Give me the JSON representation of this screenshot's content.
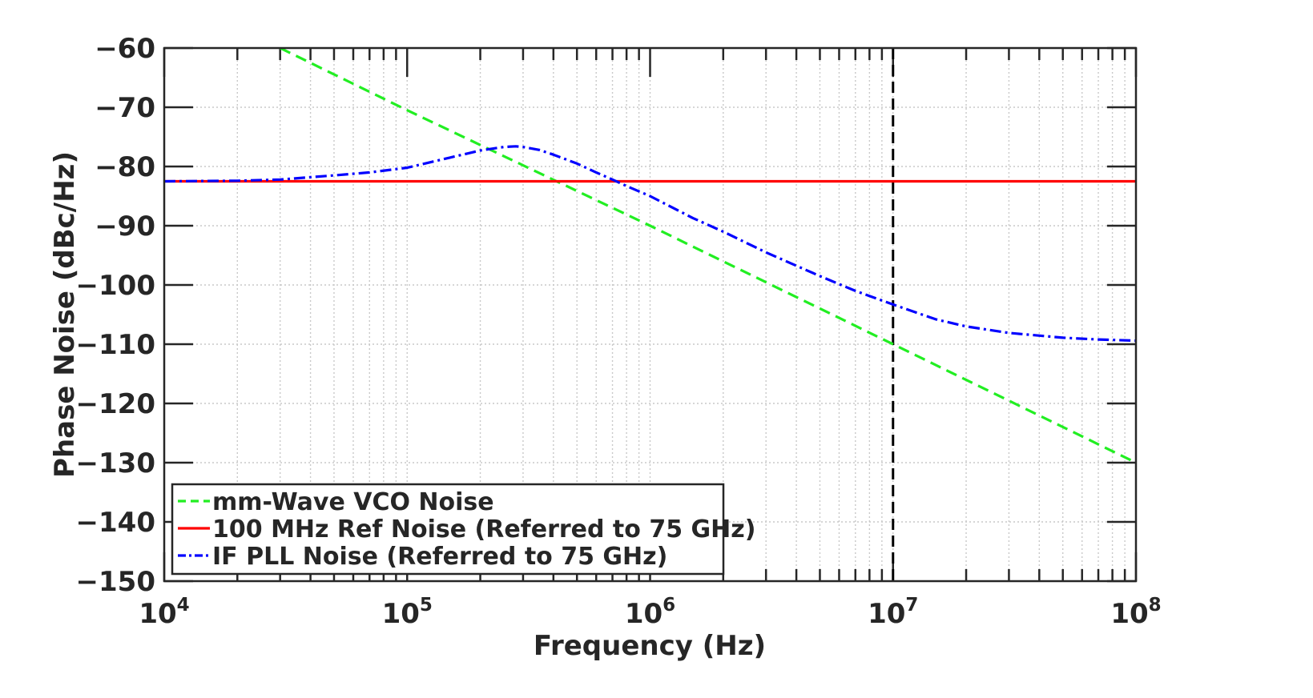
{
  "chart_data": {
    "type": "line",
    "xlabel": "Frequency (Hz)",
    "ylabel": "Phase Noise (dBc/Hz)",
    "x_scale": "log",
    "xlim": [
      10000,
      100000000
    ],
    "ylim": [
      -150,
      -60
    ],
    "x_ticks": [
      {
        "value": 10000,
        "base": "10",
        "exp": "4"
      },
      {
        "value": 100000,
        "base": "10",
        "exp": "5"
      },
      {
        "value": 1000000,
        "base": "10",
        "exp": "6"
      },
      {
        "value": 10000000,
        "base": "10",
        "exp": "7"
      },
      {
        "value": 100000000,
        "base": "10",
        "exp": "8"
      }
    ],
    "y_ticks": [
      -60,
      -70,
      -80,
      -90,
      -100,
      -110,
      -120,
      -130,
      -140,
      -150
    ],
    "y_tick_labels": [
      "−60",
      "−70",
      "−80",
      "−90",
      "−100",
      "−110",
      "−120",
      "−130",
      "−140",
      "−150"
    ],
    "grid": true,
    "vertical_marker": {
      "x": 10000000,
      "color": "#000000",
      "style": "dashed"
    },
    "legend": {
      "position": "bottom-left"
    },
    "series": [
      {
        "name": "mm-Wave VCO Noise",
        "color": "#22ee22",
        "style": "dashed",
        "x": [
          30000,
          100000,
          1000000,
          10000000,
          100000000
        ],
        "y": [
          -60,
          -70.5,
          -90,
          -110,
          -130
        ]
      },
      {
        "name": "100 MHz Ref Noise (Referred to 75 GHz)",
        "color": "#ff0000",
        "style": "solid",
        "x": [
          10000,
          100000000
        ],
        "y": [
          -82.5,
          -82.5
        ]
      },
      {
        "name": "IF PLL Noise (Referred to 75 GHz)",
        "color": "#0000ff",
        "style": "dashdot",
        "x": [
          10000,
          20000,
          30000,
          50000,
          70000,
          100000,
          150000,
          200000,
          250000,
          280000,
          300000,
          350000,
          400000,
          500000,
          600000,
          700000,
          800000,
          1000000,
          1500000,
          2000000,
          3000000,
          5000000,
          7000000,
          10000000,
          15000000,
          20000000,
          30000000,
          50000000,
          70000000,
          100000000
        ],
        "y": [
          -82.5,
          -82.4,
          -82.2,
          -81.5,
          -81,
          -80.2,
          -78.5,
          -77.3,
          -76.7,
          -76.6,
          -76.7,
          -77.2,
          -78,
          -79.5,
          -81,
          -82.2,
          -83.3,
          -85,
          -88.7,
          -91,
          -94.5,
          -98.5,
          -101,
          -103.3,
          -105.8,
          -107,
          -108.1,
          -108.9,
          -109.2,
          -109.4
        ]
      }
    ]
  }
}
